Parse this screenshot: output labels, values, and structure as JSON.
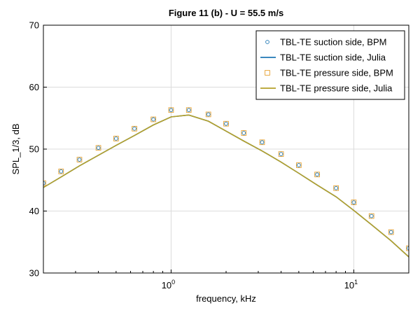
{
  "chart_data": {
    "type": "line",
    "title": "Figure 11 (b) - U = 55.5 m/s",
    "xlabel": "frequency, kHz",
    "ylabel": "SPL_1/3, dB",
    "xscale": "log",
    "xlim": [
      0.2,
      20
    ],
    "ylim": [
      30,
      70
    ],
    "xticks": [
      {
        "value": 1,
        "base": "10",
        "exp": "0"
      },
      {
        "value": 10,
        "base": "10",
        "exp": "1"
      }
    ],
    "yticks": [
      30,
      40,
      50,
      60,
      70
    ],
    "grid": true,
    "legend_position": "top-right",
    "colors": {
      "suction": "#1f77b4",
      "pressure": "#e6a030",
      "julia_line": "#b5a02a"
    },
    "series": [
      {
        "name": "TBL-TE suction side, BPM",
        "style": "circle",
        "color": "#1f77b4",
        "x": [
          0.2,
          0.25,
          0.315,
          0.4,
          0.5,
          0.63,
          0.8,
          1.0,
          1.25,
          1.6,
          2.0,
          2.5,
          3.15,
          4.0,
          5.0,
          6.3,
          8.0,
          10.0,
          12.5,
          16.0,
          20.0
        ],
        "y": [
          44.5,
          46.4,
          48.3,
          50.2,
          51.7,
          53.3,
          54.8,
          56.3,
          56.3,
          55.6,
          54.1,
          52.6,
          51.1,
          49.2,
          47.4,
          45.9,
          43.7,
          41.4,
          39.2,
          36.6,
          34.0
        ]
      },
      {
        "name": "TBL-TE suction side, Julia",
        "style": "line",
        "color": "#1f77b4",
        "x": [
          0.2,
          0.25,
          0.315,
          0.4,
          0.5,
          0.63,
          0.8,
          1.0,
          1.25,
          1.6,
          2.0,
          2.5,
          3.15,
          4.0,
          5.0,
          6.3,
          8.0,
          10.0,
          12.5,
          16.0,
          20.0
        ],
        "y": [
          43.8,
          45.5,
          47.3,
          49.0,
          50.6,
          52.2,
          53.9,
          55.2,
          55.5,
          54.5,
          52.9,
          51.3,
          49.7,
          47.9,
          46.1,
          44.2,
          42.3,
          40.1,
          37.8,
          35.2,
          32.6
        ]
      },
      {
        "name": "TBL-TE pressure side, BPM",
        "style": "square",
        "color": "#e6a030",
        "x": [
          0.2,
          0.25,
          0.315,
          0.4,
          0.5,
          0.63,
          0.8,
          1.0,
          1.25,
          1.6,
          2.0,
          2.5,
          3.15,
          4.0,
          5.0,
          6.3,
          8.0,
          10.0,
          12.5,
          16.0,
          20.0
        ],
        "y": [
          44.5,
          46.4,
          48.3,
          50.2,
          51.7,
          53.3,
          54.8,
          56.3,
          56.3,
          55.6,
          54.1,
          52.6,
          51.1,
          49.2,
          47.4,
          45.9,
          43.7,
          41.4,
          39.2,
          36.6,
          34.0
        ]
      },
      {
        "name": "TBL-TE pressure side, Julia",
        "style": "line",
        "color": "#b5a02a",
        "x": [
          0.2,
          0.25,
          0.315,
          0.4,
          0.5,
          0.63,
          0.8,
          1.0,
          1.25,
          1.6,
          2.0,
          2.5,
          3.15,
          4.0,
          5.0,
          6.3,
          8.0,
          10.0,
          12.5,
          16.0,
          20.0
        ],
        "y": [
          43.8,
          45.5,
          47.3,
          49.0,
          50.6,
          52.2,
          53.9,
          55.2,
          55.5,
          54.5,
          52.9,
          51.3,
          49.7,
          47.9,
          46.1,
          44.2,
          42.3,
          40.1,
          37.8,
          35.2,
          32.6
        ]
      }
    ]
  }
}
